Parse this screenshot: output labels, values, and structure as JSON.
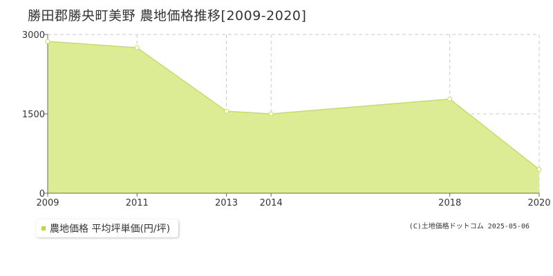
{
  "title": "勝田郡勝央町美野 農地価格推移[2009-2020]",
  "legend_label": "農地価格 平均坪単価(円/坪)",
  "copyright": "(C)土地価格ドットコム 2025-05-06",
  "colors": {
    "area_fill": "#dcec94",
    "line": "#c2e05a",
    "point_fill": "#ffffff",
    "legend_swatch": "#b4dc3c",
    "grid": "#c8c8c8",
    "axis": "#666666"
  },
  "chart_data": {
    "type": "area",
    "title": "勝田郡勝央町美野 農地価格推移[2009-2020]",
    "xlabel": "",
    "ylabel": "",
    "x": [
      2009,
      2011,
      2013,
      2014,
      2018,
      2020
    ],
    "x_tick_labels": [
      "2009",
      "2011",
      "2013",
      "2014",
      "2018",
      "2020"
    ],
    "y_ticks": [
      0,
      1500,
      3000
    ],
    "y_tick_labels": [
      "0",
      "1500",
      "3000"
    ],
    "ylim": [
      0,
      3000
    ],
    "grid": true,
    "legend_position": "bottom-left",
    "series": [
      {
        "name": "農地価格 平均坪単価(円/坪)",
        "values": [
          2870,
          2750,
          1550,
          1500,
          1780,
          450
        ]
      }
    ]
  }
}
